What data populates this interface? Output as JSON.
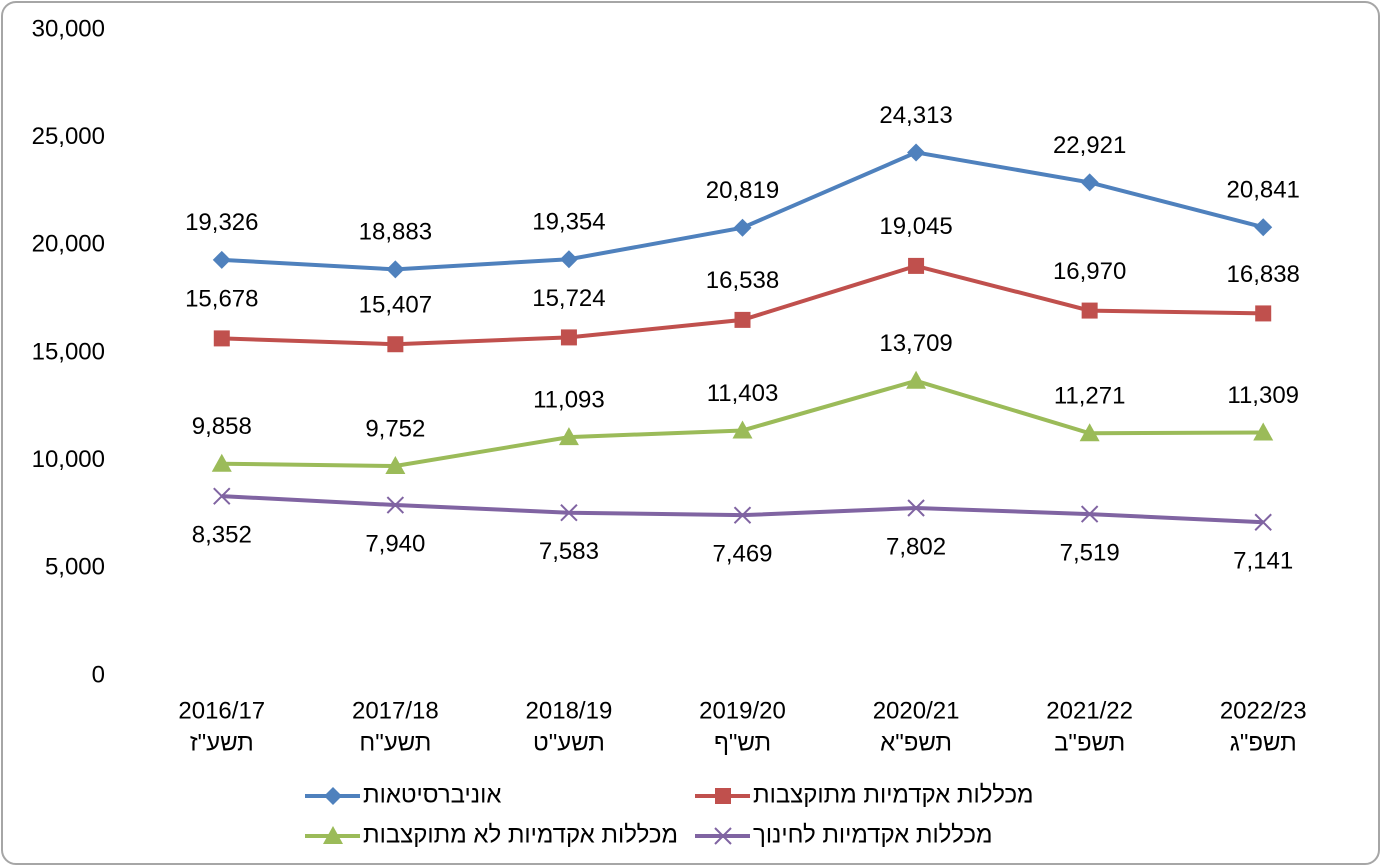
{
  "chart_data": {
    "type": "line",
    "categories": [
      [
        "2016/17",
        "תשע\"ז"
      ],
      [
        "2017/18",
        "תשע\"ח"
      ],
      [
        "2018/19",
        "תשע\"ט"
      ],
      [
        "2019/20",
        "תש\"ף"
      ],
      [
        "2020/21",
        "תשפ\"א"
      ],
      [
        "2021/22",
        "תשפ\"ב"
      ],
      [
        "2022/23",
        "תשפ\"ג"
      ]
    ],
    "series": [
      {
        "name": "אוניברסיטאות",
        "color": "#4f81bd",
        "marker": "diamond",
        "values": [
          19326,
          18883,
          19354,
          20819,
          24313,
          22921,
          20841
        ],
        "value_labels": [
          "19,326",
          "18,883",
          "19,354",
          "20,819",
          "24,313",
          "22,921",
          "20,841"
        ]
      },
      {
        "name": "מכללות אקדמיות מתוקצבות",
        "color": "#c0504d",
        "marker": "square",
        "values": [
          15678,
          15407,
          15724,
          16538,
          19045,
          16970,
          16838
        ],
        "value_labels": [
          "15,678",
          "15,407",
          "15,724",
          "16,538",
          "19,045",
          "16,970",
          "16,838"
        ]
      },
      {
        "name": "מכללות אקדמיות לא מתוקצבות",
        "color": "#9bbb59",
        "marker": "triangle",
        "values": [
          9858,
          9752,
          11093,
          11403,
          13709,
          11271,
          11309
        ],
        "value_labels": [
          "9,858",
          "9,752",
          "11,093",
          "11,403",
          "13,709",
          "11,271",
          "11,309"
        ]
      },
      {
        "name": "מכללות אקדמיות לחינוך",
        "color": "#8064a2",
        "marker": "x",
        "values": [
          8352,
          7940,
          7583,
          7469,
          7802,
          7519,
          7141
        ],
        "value_labels": [
          "8,352",
          "7,940",
          "7,583",
          "7,469",
          "7,802",
          "7,519",
          "7,141"
        ]
      }
    ],
    "ylim": [
      0,
      30000
    ],
    "yticks": [
      0,
      {
        "value": 5000,
        "label": "5,000"
      },
      {
        "value": 10000,
        "label": "10,000"
      },
      {
        "value": 15000,
        "label": "15,000"
      },
      {
        "value": 20000,
        "label": "20,000"
      },
      {
        "value": 25000,
        "label": "25,000"
      },
      {
        "value": 30000,
        "label": "30,000"
      }
    ],
    "grid": false,
    "legend": "bottom"
  }
}
